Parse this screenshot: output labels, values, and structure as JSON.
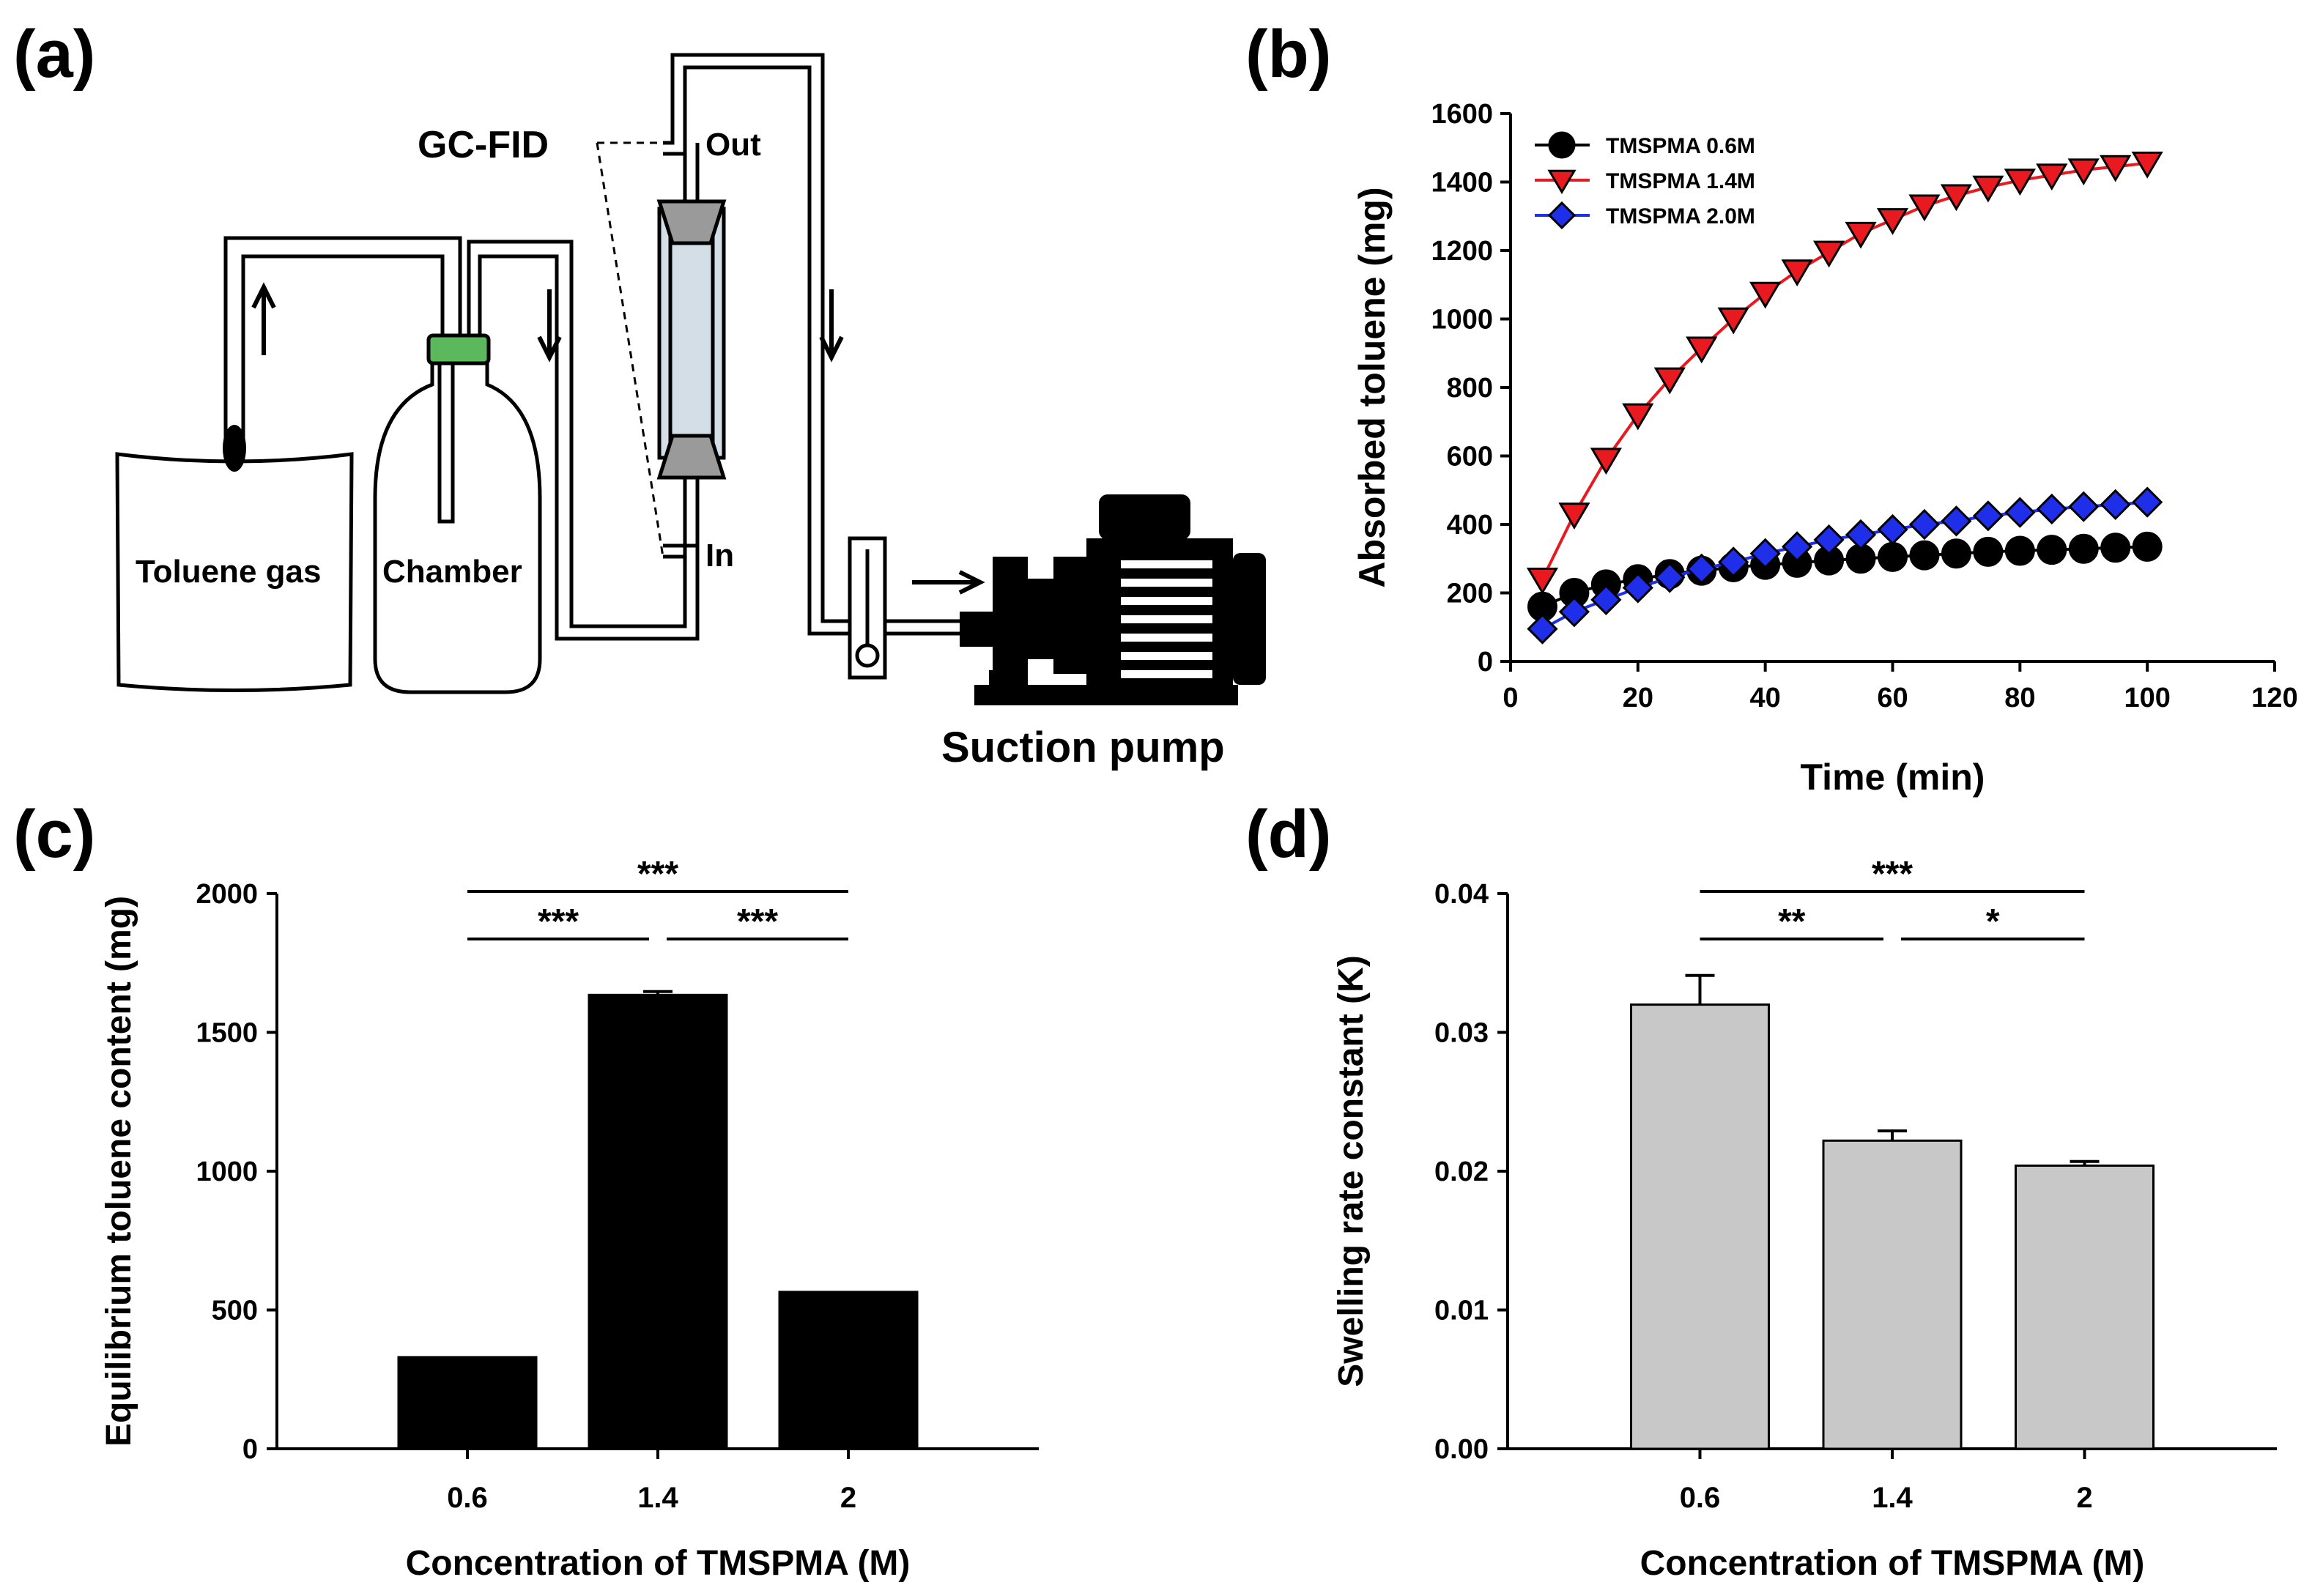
{
  "panels": {
    "a": "(a)",
    "b": "(b)",
    "c": "(c)",
    "d": "(d)"
  },
  "diagram": {
    "gc_fid": "GC-FID",
    "out": "Out",
    "in": "In",
    "toluene_gas": "Toluene gas",
    "chamber": "Chamber",
    "suction_pump": "Suction pump",
    "colors": {
      "cap": "#5cb85c",
      "packing": "#9eb6c8",
      "ring": "#999999"
    }
  },
  "chart_data": [
    {
      "type": "line",
      "xlabel": "Time (min)",
      "ylabel": "Absorbed toluene (mg)",
      "xlim": [
        0,
        120
      ],
      "ylim": [
        0,
        1600
      ],
      "xticks": [
        0,
        20,
        40,
        60,
        80,
        100,
        120
      ],
      "yticks": [
        0,
        200,
        400,
        600,
        800,
        1000,
        1200,
        1400,
        1600
      ],
      "legend_position": "top-left",
      "grid": false,
      "x": [
        5,
        10,
        15,
        20,
        25,
        30,
        35,
        40,
        45,
        50,
        55,
        60,
        65,
        70,
        75,
        80,
        85,
        90,
        95,
        100
      ],
      "series": [
        {
          "name": "TMSPMA 0.6M",
          "marker": "circle",
          "color": "#000000",
          "values": [
            160,
            200,
            225,
            240,
            255,
            265,
            275,
            282,
            288,
            295,
            300,
            305,
            310,
            315,
            320,
            323,
            326,
            329,
            332,
            335
          ]
        },
        {
          "name": "TMSPMA 1.4M",
          "marker": "triangle-down",
          "color": "#e8191f",
          "values": [
            240,
            430,
            590,
            720,
            825,
            915,
            1000,
            1075,
            1140,
            1195,
            1250,
            1290,
            1330,
            1360,
            1385,
            1405,
            1420,
            1435,
            1445,
            1455
          ]
        },
        {
          "name": "TMSPMA 2.0M",
          "marker": "diamond",
          "color": "#1f2ee8",
          "values": [
            95,
            145,
            180,
            215,
            245,
            270,
            290,
            315,
            335,
            355,
            370,
            385,
            400,
            410,
            425,
            435,
            445,
            452,
            458,
            465
          ]
        }
      ]
    },
    {
      "type": "bar",
      "xlabel": "Concentration  of TMSPMA (M)",
      "ylabel": "Equilibrium toluene content (mg)",
      "categories": [
        "0.6",
        "1.4",
        "2"
      ],
      "values": [
        330,
        1635,
        565
      ],
      "errors": [
        0,
        12,
        0
      ],
      "ylim": [
        0,
        2000
      ],
      "yticks": [
        0,
        500,
        1000,
        1500,
        2000
      ],
      "bar_color": "#000000",
      "significance": [
        {
          "from": 0,
          "to": 2,
          "label": "***"
        },
        {
          "from": 0,
          "to": 1,
          "label": "***"
        },
        {
          "from": 1,
          "to": 2,
          "label": "***"
        }
      ]
    },
    {
      "type": "bar",
      "xlabel": "Concentration  of TMSPMA (M)",
      "ylabel": "Swelling rate constant (K)",
      "categories": [
        "0.6",
        "1.4",
        "2"
      ],
      "values": [
        0.032,
        0.0222,
        0.0204
      ],
      "errors": [
        0.0021,
        0.0007,
        0.0003
      ],
      "ylim": [
        0,
        0.04
      ],
      "yticks": [
        "0.00",
        "0.01",
        "0.02",
        "0.03",
        "0.04"
      ],
      "bar_color": "#c8c8c8",
      "significance": [
        {
          "from": 0,
          "to": 2,
          "label": "***"
        },
        {
          "from": 0,
          "to": 1,
          "label": "**"
        },
        {
          "from": 1,
          "to": 2,
          "label": "*"
        }
      ]
    }
  ]
}
